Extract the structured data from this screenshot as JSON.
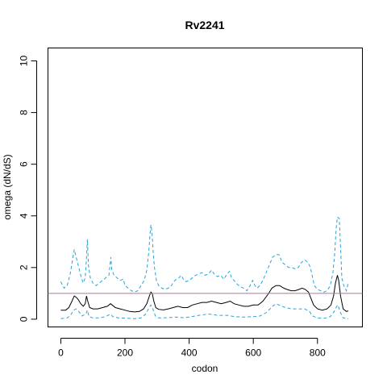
{
  "chart_data": {
    "type": "line",
    "title": "Rv2241",
    "xlabel": "codon",
    "ylabel": "omega (dN/dS)",
    "xlim": [
      -40,
      940
    ],
    "ylim": [
      -0.3,
      10.5
    ],
    "x_ticks": [
      0,
      200,
      400,
      600,
      800
    ],
    "y_ticks": [
      0,
      2,
      4,
      6,
      8,
      10
    ],
    "reference_line": {
      "y": 1,
      "color": "#b5739d"
    },
    "grid": false,
    "series": [
      {
        "role": "upper",
        "color": "#29a3d9",
        "dash": "dashed",
        "points": [
          [
            0,
            1.45
          ],
          [
            10,
            1.2
          ],
          [
            20,
            1.3
          ],
          [
            30,
            1.8
          ],
          [
            38,
            2.4
          ],
          [
            42,
            2.7
          ],
          [
            46,
            2.5
          ],
          [
            52,
            2.2
          ],
          [
            58,
            1.9
          ],
          [
            64,
            1.6
          ],
          [
            70,
            1.4
          ],
          [
            76,
            1.6
          ],
          [
            80,
            2.4
          ],
          [
            83,
            3.1
          ],
          [
            86,
            2.1
          ],
          [
            92,
            1.6
          ],
          [
            100,
            1.4
          ],
          [
            110,
            1.3
          ],
          [
            120,
            1.4
          ],
          [
            130,
            1.5
          ],
          [
            140,
            1.6
          ],
          [
            150,
            1.7
          ],
          [
            156,
            2.4
          ],
          [
            159,
            1.9
          ],
          [
            166,
            1.7
          ],
          [
            175,
            1.6
          ],
          [
            185,
            1.5
          ],
          [
            195,
            1.55
          ],
          [
            200,
            1.3
          ],
          [
            210,
            1.2
          ],
          [
            220,
            1.1
          ],
          [
            230,
            1.05
          ],
          [
            240,
            1.1
          ],
          [
            250,
            1.3
          ],
          [
            260,
            1.5
          ],
          [
            268,
            1.9
          ],
          [
            274,
            2.6
          ],
          [
            278,
            3.3
          ],
          [
            281,
            3.65
          ],
          [
            284,
            3.4
          ],
          [
            288,
            2.6
          ],
          [
            292,
            2.0
          ],
          [
            298,
            1.5
          ],
          [
            305,
            1.3
          ],
          [
            315,
            1.2
          ],
          [
            325,
            1.15
          ],
          [
            335,
            1.2
          ],
          [
            345,
            1.3
          ],
          [
            352,
            1.45
          ],
          [
            360,
            1.55
          ],
          [
            368,
            1.6
          ],
          [
            375,
            1.7
          ],
          [
            382,
            1.55
          ],
          [
            390,
            1.45
          ],
          [
            400,
            1.5
          ],
          [
            410,
            1.6
          ],
          [
            420,
            1.7
          ],
          [
            430,
            1.75
          ],
          [
            440,
            1.8
          ],
          [
            450,
            1.7
          ],
          [
            460,
            1.75
          ],
          [
            470,
            1.9
          ],
          [
            478,
            1.75
          ],
          [
            488,
            1.65
          ],
          [
            498,
            1.7
          ],
          [
            508,
            1.55
          ],
          [
            518,
            1.75
          ],
          [
            526,
            1.85
          ],
          [
            532,
            1.6
          ],
          [
            540,
            1.5
          ],
          [
            550,
            1.35
          ],
          [
            560,
            1.25
          ],
          [
            570,
            1.2
          ],
          [
            580,
            1.1
          ],
          [
            590,
            1.3
          ],
          [
            598,
            1.5
          ],
          [
            605,
            1.3
          ],
          [
            612,
            1.2
          ],
          [
            620,
            1.3
          ],
          [
            630,
            1.5
          ],
          [
            640,
            1.8
          ],
          [
            650,
            2.1
          ],
          [
            660,
            2.4
          ],
          [
            670,
            2.5
          ],
          [
            680,
            2.5
          ],
          [
            690,
            2.2
          ],
          [
            700,
            2.1
          ],
          [
            710,
            2.0
          ],
          [
            720,
            2.0
          ],
          [
            730,
            1.95
          ],
          [
            740,
            2.0
          ],
          [
            750,
            2.2
          ],
          [
            760,
            2.3
          ],
          [
            770,
            2.2
          ],
          [
            778,
            2.0
          ],
          [
            785,
            1.6
          ],
          [
            790,
            1.3
          ],
          [
            800,
            1.15
          ],
          [
            810,
            1.1
          ],
          [
            820,
            1.05
          ],
          [
            830,
            1.1
          ],
          [
            840,
            1.3
          ],
          [
            848,
            1.8
          ],
          [
            854,
            2.6
          ],
          [
            858,
            3.5
          ],
          [
            862,
            3.95
          ],
          [
            868,
            3.9
          ],
          [
            872,
            2.8
          ],
          [
            876,
            1.6
          ],
          [
            882,
            1.3
          ],
          [
            890,
            1.1
          ],
          [
            896,
            1.4
          ]
        ]
      },
      {
        "role": "estimate",
        "color": "#000000",
        "dash": "solid",
        "points": [
          [
            0,
            0.35
          ],
          [
            15,
            0.35
          ],
          [
            25,
            0.45
          ],
          [
            35,
            0.7
          ],
          [
            42,
            0.9
          ],
          [
            48,
            0.85
          ],
          [
            55,
            0.75
          ],
          [
            62,
            0.6
          ],
          [
            70,
            0.5
          ],
          [
            76,
            0.6
          ],
          [
            80,
            0.9
          ],
          [
            84,
            0.7
          ],
          [
            90,
            0.45
          ],
          [
            100,
            0.4
          ],
          [
            115,
            0.4
          ],
          [
            130,
            0.45
          ],
          [
            145,
            0.5
          ],
          [
            155,
            0.6
          ],
          [
            160,
            0.55
          ],
          [
            170,
            0.45
          ],
          [
            185,
            0.4
          ],
          [
            200,
            0.35
          ],
          [
            215,
            0.3
          ],
          [
            230,
            0.28
          ],
          [
            245,
            0.3
          ],
          [
            258,
            0.4
          ],
          [
            268,
            0.6
          ],
          [
            276,
            0.9
          ],
          [
            281,
            1.05
          ],
          [
            285,
            1.0
          ],
          [
            290,
            0.7
          ],
          [
            296,
            0.45
          ],
          [
            305,
            0.38
          ],
          [
            320,
            0.36
          ],
          [
            335,
            0.4
          ],
          [
            350,
            0.45
          ],
          [
            365,
            0.5
          ],
          [
            380,
            0.45
          ],
          [
            395,
            0.45
          ],
          [
            410,
            0.55
          ],
          [
            425,
            0.6
          ],
          [
            440,
            0.65
          ],
          [
            455,
            0.65
          ],
          [
            470,
            0.7
          ],
          [
            485,
            0.65
          ],
          [
            500,
            0.6
          ],
          [
            515,
            0.65
          ],
          [
            528,
            0.7
          ],
          [
            540,
            0.6
          ],
          [
            555,
            0.55
          ],
          [
            570,
            0.5
          ],
          [
            585,
            0.5
          ],
          [
            600,
            0.55
          ],
          [
            615,
            0.55
          ],
          [
            630,
            0.7
          ],
          [
            645,
            0.95
          ],
          [
            658,
            1.2
          ],
          [
            670,
            1.3
          ],
          [
            682,
            1.3
          ],
          [
            695,
            1.2
          ],
          [
            705,
            1.15
          ],
          [
            718,
            1.1
          ],
          [
            730,
            1.1
          ],
          [
            742,
            1.15
          ],
          [
            752,
            1.2
          ],
          [
            762,
            1.15
          ],
          [
            772,
            1.05
          ],
          [
            780,
            0.8
          ],
          [
            788,
            0.55
          ],
          [
            800,
            0.4
          ],
          [
            815,
            0.35
          ],
          [
            830,
            0.4
          ],
          [
            842,
            0.55
          ],
          [
            850,
            0.9
          ],
          [
            856,
            1.4
          ],
          [
            862,
            1.7
          ],
          [
            866,
            1.5
          ],
          [
            872,
            0.9
          ],
          [
            880,
            0.4
          ],
          [
            890,
            0.3
          ],
          [
            896,
            0.32
          ]
        ]
      },
      {
        "role": "lower",
        "color": "#29a3d9",
        "dash": "dashed",
        "points": [
          [
            0,
            0.02
          ],
          [
            20,
            0.05
          ],
          [
            30,
            0.15
          ],
          [
            40,
            0.35
          ],
          [
            48,
            0.4
          ],
          [
            56,
            0.3
          ],
          [
            66,
            0.12
          ],
          [
            78,
            0.2
          ],
          [
            83,
            0.35
          ],
          [
            88,
            0.1
          ],
          [
            100,
            0.05
          ],
          [
            120,
            0.05
          ],
          [
            140,
            0.1
          ],
          [
            155,
            0.2
          ],
          [
            162,
            0.1
          ],
          [
            180,
            0.05
          ],
          [
            200,
            0.04
          ],
          [
            230,
            0.02
          ],
          [
            250,
            0.05
          ],
          [
            265,
            0.2
          ],
          [
            275,
            0.45
          ],
          [
            281,
            0.55
          ],
          [
            287,
            0.4
          ],
          [
            295,
            0.12
          ],
          [
            305,
            0.05
          ],
          [
            330,
            0.06
          ],
          [
            360,
            0.08
          ],
          [
            380,
            0.06
          ],
          [
            400,
            0.08
          ],
          [
            430,
            0.15
          ],
          [
            460,
            0.2
          ],
          [
            490,
            0.15
          ],
          [
            520,
            0.15
          ],
          [
            540,
            0.1
          ],
          [
            570,
            0.08
          ],
          [
            600,
            0.1
          ],
          [
            620,
            0.12
          ],
          [
            640,
            0.25
          ],
          [
            660,
            0.5
          ],
          [
            670,
            0.6
          ],
          [
            680,
            0.55
          ],
          [
            700,
            0.45
          ],
          [
            720,
            0.4
          ],
          [
            740,
            0.4
          ],
          [
            760,
            0.4
          ],
          [
            775,
            0.3
          ],
          [
            785,
            0.12
          ],
          [
            800,
            0.05
          ],
          [
            820,
            0.03
          ],
          [
            840,
            0.1
          ],
          [
            852,
            0.3
          ],
          [
            860,
            0.5
          ],
          [
            864,
            0.55
          ],
          [
            870,
            0.3
          ],
          [
            880,
            0.05
          ],
          [
            896,
            0.02
          ]
        ]
      }
    ]
  }
}
